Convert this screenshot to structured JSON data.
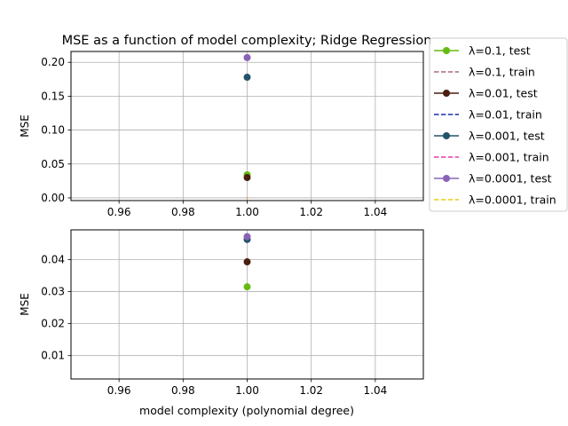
{
  "chart_data": [
    {
      "type": "line",
      "title": "MSE as a function of model complexity; Ridge Regression",
      "xlabel": "",
      "ylabel": "MSE",
      "xlim": [
        0.945,
        1.055
      ],
      "ylim": [
        -0.004,
        0.216
      ],
      "xticks": [
        0.96,
        0.98,
        1.0,
        1.02,
        1.04
      ],
      "xtick_labels": [
        "0.96",
        "0.98",
        "1.00",
        "1.02",
        "1.04"
      ],
      "yticks": [
        0.0,
        0.05,
        0.1,
        0.15,
        0.2
      ],
      "ytick_labels": [
        "0.00",
        "0.05",
        "0.10",
        "0.15",
        "0.20"
      ],
      "grid": true,
      "legend_position": "outside-right",
      "series": [
        {
          "name": "λ=0.1, test",
          "style": "marker-line",
          "color": "#66bb11",
          "x": [
            1.0
          ],
          "y": [
            0.034
          ]
        },
        {
          "name": "λ=0.1, train",
          "style": "dashed",
          "color": "#a36b85",
          "x": [
            1.0
          ],
          "y": [
            0.0
          ]
        },
        {
          "name": "λ=0.01, test",
          "style": "marker-line",
          "color": "#4a1f10",
          "x": [
            1.0
          ],
          "y": [
            0.03
          ]
        },
        {
          "name": "λ=0.01, train",
          "style": "dashed",
          "color": "#1f2fa6",
          "x": [
            1.0
          ],
          "y": [
            0.0
          ]
        },
        {
          "name": "λ=0.001, test",
          "style": "marker-line",
          "color": "#24536b",
          "x": [
            1.0
          ],
          "y": [
            0.178
          ]
        },
        {
          "name": "λ=0.001, train",
          "style": "dashed",
          "color": "#e23fa8",
          "x": [
            1.0
          ],
          "y": [
            0.0
          ]
        },
        {
          "name": "λ=0.0001, test",
          "style": "marker-line",
          "color": "#8a63b7",
          "x": [
            1.0
          ],
          "y": [
            0.207
          ]
        },
        {
          "name": "λ=0.0001, train",
          "style": "dashed",
          "color": "#e6cf1a",
          "x": [
            1.0
          ],
          "y": [
            0.0
          ]
        }
      ]
    },
    {
      "type": "line",
      "title": "",
      "xlabel": "model complexity (polynomial degree)",
      "ylabel": "MSE",
      "xlim": [
        0.945,
        1.055
      ],
      "ylim": [
        0.0027,
        0.0493
      ],
      "xticks": [
        0.96,
        0.98,
        1.0,
        1.02,
        1.04
      ],
      "xtick_labels": [
        "0.96",
        "0.98",
        "1.00",
        "1.02",
        "1.04"
      ],
      "yticks": [
        0.01,
        0.02,
        0.03,
        0.04
      ],
      "ytick_labels": [
        "0.01",
        "0.02",
        "0.03",
        "0.04"
      ],
      "grid": true,
      "series": [
        {
          "name": "λ=0.1, test",
          "style": "marker-line",
          "color": "#66bb11",
          "x": [
            1.0
          ],
          "y": [
            0.0315
          ]
        },
        {
          "name": "λ=0.01, test",
          "style": "marker-line",
          "color": "#4a1f10",
          "x": [
            1.0
          ],
          "y": [
            0.0393
          ]
        },
        {
          "name": "λ=0.001, test",
          "style": "marker-line",
          "color": "#24536b",
          "x": [
            1.0
          ],
          "y": [
            0.0463
          ]
        },
        {
          "name": "λ=0.0001, test",
          "style": "marker-line",
          "color": "#8a63b7",
          "x": [
            1.0
          ],
          "y": [
            0.0472
          ]
        }
      ]
    }
  ]
}
